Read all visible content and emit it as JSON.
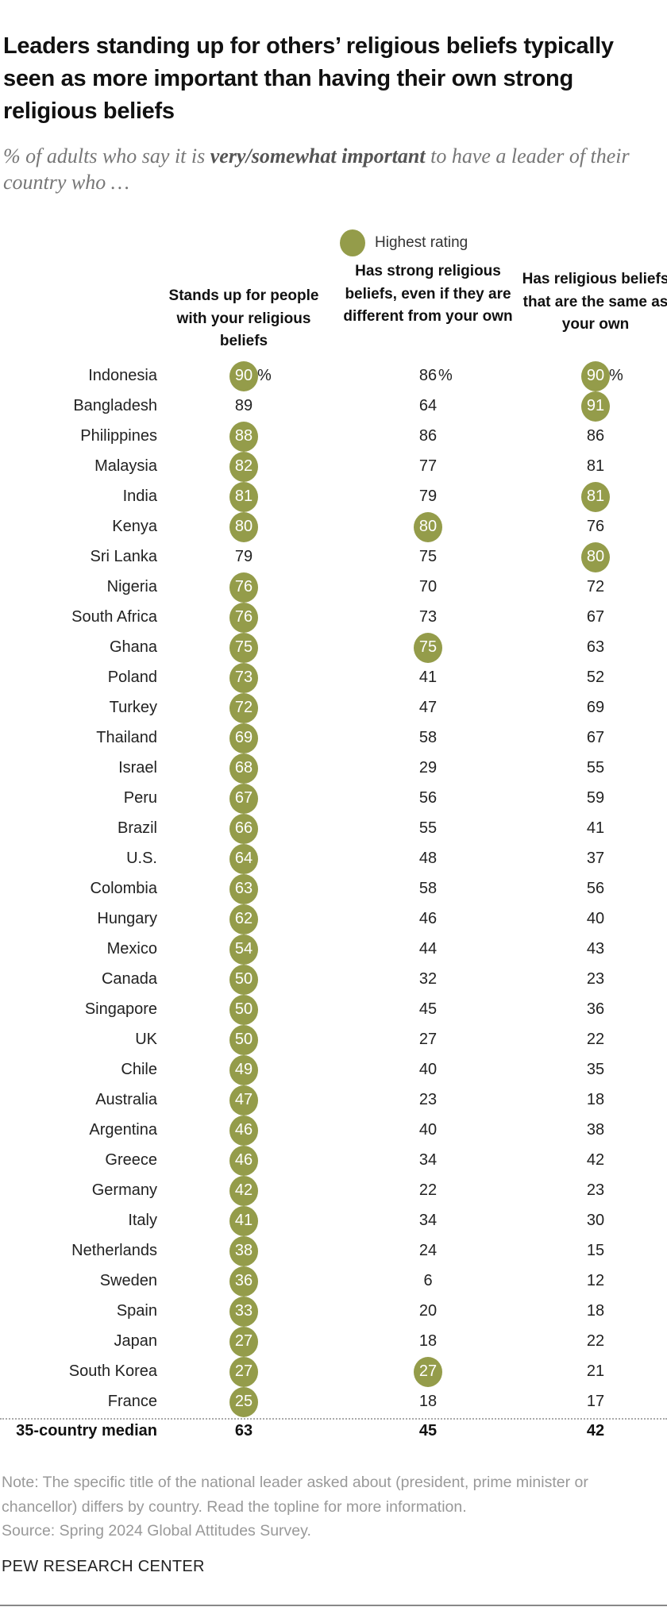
{
  "title": "Leaders standing up for others’ religious beliefs typically seen as more important than having their own strong religious beliefs",
  "subtitle_pre": "% of adults who say it is ",
  "subtitle_em": "very/somewhat important",
  "subtitle_post": " to have a leader of their country who …",
  "legend": {
    "label": "Highest rating",
    "color": "#949c4a"
  },
  "chart_data": {
    "type": "table",
    "columns": [
      "Stands up for people with your religious beliefs",
      "Has strong religious beliefs, even if they are different from your own",
      "Has religious beliefs that are the same as your own"
    ],
    "unit": "%",
    "rows": [
      {
        "country": "Indonesia",
        "values": [
          90,
          86,
          90
        ],
        "highest": [
          true,
          false,
          true
        ]
      },
      {
        "country": "Bangladesh",
        "values": [
          89,
          64,
          91
        ],
        "highest": [
          false,
          false,
          true
        ]
      },
      {
        "country": "Philippines",
        "values": [
          88,
          86,
          86
        ],
        "highest": [
          true,
          false,
          false
        ]
      },
      {
        "country": "Malaysia",
        "values": [
          82,
          77,
          81
        ],
        "highest": [
          true,
          false,
          false
        ]
      },
      {
        "country": "India",
        "values": [
          81,
          79,
          81
        ],
        "highest": [
          true,
          false,
          true
        ]
      },
      {
        "country": "Kenya",
        "values": [
          80,
          80,
          76
        ],
        "highest": [
          true,
          true,
          false
        ]
      },
      {
        "country": "Sri Lanka",
        "values": [
          79,
          75,
          80
        ],
        "highest": [
          false,
          false,
          true
        ]
      },
      {
        "country": "Nigeria",
        "values": [
          76,
          70,
          72
        ],
        "highest": [
          true,
          false,
          false
        ]
      },
      {
        "country": "South Africa",
        "values": [
          76,
          73,
          67
        ],
        "highest": [
          true,
          false,
          false
        ]
      },
      {
        "country": "Ghana",
        "values": [
          75,
          75,
          63
        ],
        "highest": [
          true,
          true,
          false
        ]
      },
      {
        "country": "Poland",
        "values": [
          73,
          41,
          52
        ],
        "highest": [
          true,
          false,
          false
        ]
      },
      {
        "country": "Turkey",
        "values": [
          72,
          47,
          69
        ],
        "highest": [
          true,
          false,
          false
        ]
      },
      {
        "country": "Thailand",
        "values": [
          69,
          58,
          67
        ],
        "highest": [
          true,
          false,
          false
        ]
      },
      {
        "country": "Israel",
        "values": [
          68,
          29,
          55
        ],
        "highest": [
          true,
          false,
          false
        ]
      },
      {
        "country": "Peru",
        "values": [
          67,
          56,
          59
        ],
        "highest": [
          true,
          false,
          false
        ]
      },
      {
        "country": "Brazil",
        "values": [
          66,
          55,
          41
        ],
        "highest": [
          true,
          false,
          false
        ]
      },
      {
        "country": "U.S.",
        "values": [
          64,
          48,
          37
        ],
        "highest": [
          true,
          false,
          false
        ]
      },
      {
        "country": "Colombia",
        "values": [
          63,
          58,
          56
        ],
        "highest": [
          true,
          false,
          false
        ]
      },
      {
        "country": "Hungary",
        "values": [
          62,
          46,
          40
        ],
        "highest": [
          true,
          false,
          false
        ]
      },
      {
        "country": "Mexico",
        "values": [
          54,
          44,
          43
        ],
        "highest": [
          true,
          false,
          false
        ]
      },
      {
        "country": "Canada",
        "values": [
          50,
          32,
          23
        ],
        "highest": [
          true,
          false,
          false
        ]
      },
      {
        "country": "Singapore",
        "values": [
          50,
          45,
          36
        ],
        "highest": [
          true,
          false,
          false
        ]
      },
      {
        "country": "UK",
        "values": [
          50,
          27,
          22
        ],
        "highest": [
          true,
          false,
          false
        ]
      },
      {
        "country": "Chile",
        "values": [
          49,
          40,
          35
        ],
        "highest": [
          true,
          false,
          false
        ]
      },
      {
        "country": "Australia",
        "values": [
          47,
          23,
          18
        ],
        "highest": [
          true,
          false,
          false
        ]
      },
      {
        "country": "Argentina",
        "values": [
          46,
          40,
          38
        ],
        "highest": [
          true,
          false,
          false
        ]
      },
      {
        "country": "Greece",
        "values": [
          46,
          34,
          42
        ],
        "highest": [
          true,
          false,
          false
        ]
      },
      {
        "country": "Germany",
        "values": [
          42,
          22,
          23
        ],
        "highest": [
          true,
          false,
          false
        ]
      },
      {
        "country": "Italy",
        "values": [
          41,
          34,
          30
        ],
        "highest": [
          true,
          false,
          false
        ]
      },
      {
        "country": "Netherlands",
        "values": [
          38,
          24,
          15
        ],
        "highest": [
          true,
          false,
          false
        ]
      },
      {
        "country": "Sweden",
        "values": [
          36,
          6,
          12
        ],
        "highest": [
          true,
          false,
          false
        ]
      },
      {
        "country": "Spain",
        "values": [
          33,
          20,
          18
        ],
        "highest": [
          true,
          false,
          false
        ]
      },
      {
        "country": "Japan",
        "values": [
          27,
          18,
          22
        ],
        "highest": [
          true,
          false,
          false
        ]
      },
      {
        "country": "South Korea",
        "values": [
          27,
          27,
          21
        ],
        "highest": [
          true,
          true,
          false
        ]
      },
      {
        "country": "France",
        "values": [
          25,
          18,
          17
        ],
        "highest": [
          true,
          false,
          false
        ]
      }
    ],
    "median": {
      "label": "35-country median",
      "values": [
        63,
        45,
        42
      ]
    }
  },
  "note": "Note: The specific title of the national leader asked about (president, prime minister or chancellor) differs by country. Read the topline for more information.",
  "source": "Source: Spring 2024 Global Attitudes Survey.",
  "brand": "PEW RESEARCH CENTER"
}
